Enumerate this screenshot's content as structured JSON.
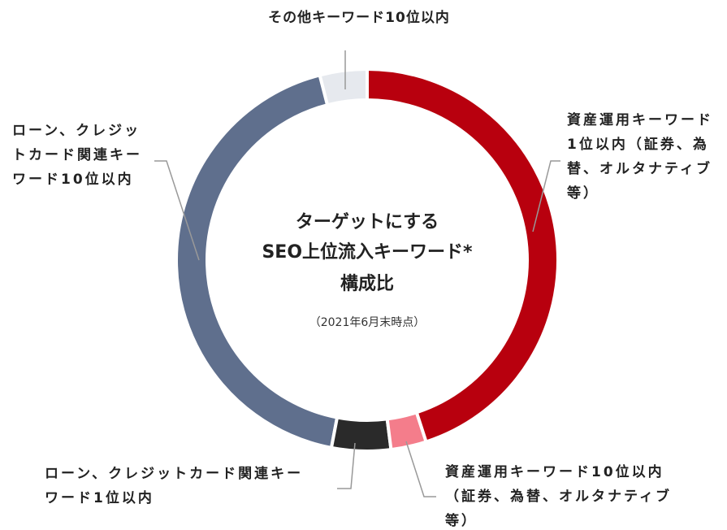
{
  "chart_data": {
    "type": "donut",
    "center_title": [
      "ターゲットにする",
      "SEO上位流入キーワード*",
      "構成比"
    ],
    "center_subtitle": "（2021年6月末時点）",
    "categories": [
      "資産運用キーワード1位以内（証券、為替、オルタナティブ等）",
      "資産運用キーワード10位以内（証券、為替、オルタナティブ等）",
      "ローン、クレジットカード関連キーワード1位以内",
      "ローン、クレジットカード関連キーワード10位以内",
      "その他キーワード10位以内"
    ],
    "values": [
      45,
      3,
      5,
      43,
      4
    ],
    "colors": [
      "#b8000e",
      "#f47d8b",
      "#2a2a2a",
      "#5f6f8d",
      "#e6e9ee"
    ]
  }
}
